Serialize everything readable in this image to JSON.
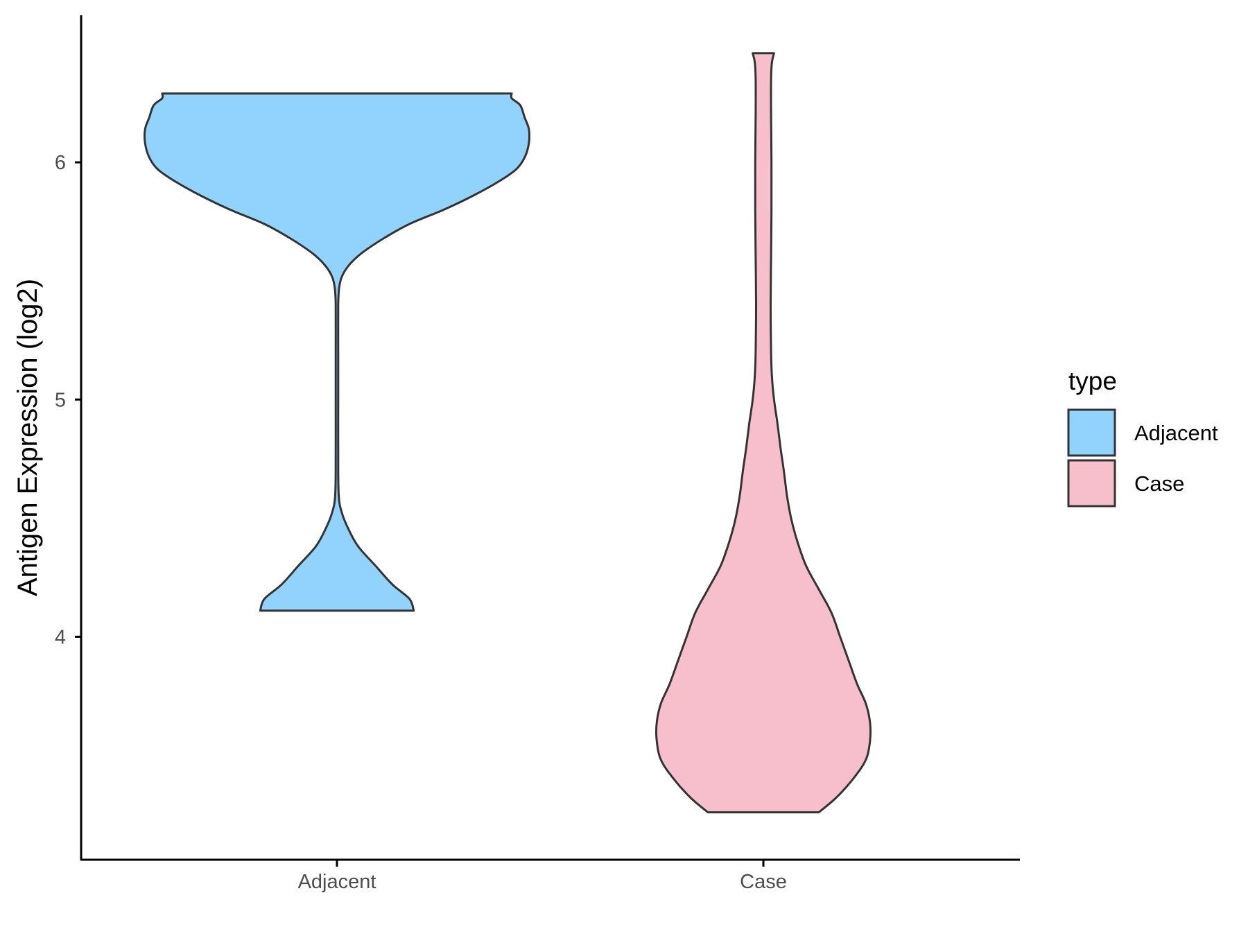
{
  "chart_data": {
    "type": "violin",
    "xlabel": "",
    "ylabel": "Antigen Expression (log2)",
    "categories": [
      "Adjacent",
      "Case"
    ],
    "ylim": [
      3.06,
      6.62
    ],
    "yticks": [
      4,
      5,
      6
    ],
    "grid": false,
    "legend": {
      "title": "type",
      "position": "right",
      "items": [
        {
          "label": "Adjacent",
          "color": "#92D3FE"
        },
        {
          "label": "Case",
          "color": "#F7BFCB"
        }
      ]
    },
    "outline_color": "#333333",
    "violins": [
      {
        "name": "Adjacent",
        "color": "#92D3FE",
        "range": [
          4.11,
          6.29
        ],
        "max_half_width": 0.45,
        "profile": [
          [
            4.11,
            0.18
          ],
          [
            4.16,
            0.17
          ],
          [
            4.22,
            0.13
          ],
          [
            4.3,
            0.09
          ],
          [
            4.38,
            0.05
          ],
          [
            4.45,
            0.028
          ],
          [
            4.52,
            0.012
          ],
          [
            4.6,
            0.004
          ],
          [
            4.8,
            0.003
          ],
          [
            5.0,
            0.003
          ],
          [
            5.2,
            0.003
          ],
          [
            5.4,
            0.003
          ],
          [
            5.47,
            0.005
          ],
          [
            5.52,
            0.012
          ],
          [
            5.57,
            0.03
          ],
          [
            5.62,
            0.06
          ],
          [
            5.68,
            0.11
          ],
          [
            5.74,
            0.17
          ],
          [
            5.8,
            0.25
          ],
          [
            5.86,
            0.32
          ],
          [
            5.92,
            0.38
          ],
          [
            5.97,
            0.42
          ],
          [
            6.02,
            0.44
          ],
          [
            6.08,
            0.45
          ],
          [
            6.14,
            0.45
          ],
          [
            6.19,
            0.44
          ],
          [
            6.24,
            0.43
          ],
          [
            6.27,
            0.41
          ],
          [
            6.29,
            0.41
          ]
        ]
      },
      {
        "name": "Case",
        "color": "#F7BFCB",
        "range": [
          3.26,
          6.46
        ],
        "max_half_width": 0.25,
        "profile": [
          [
            3.26,
            0.13
          ],
          [
            3.32,
            0.17
          ],
          [
            3.4,
            0.21
          ],
          [
            3.48,
            0.24
          ],
          [
            3.56,
            0.25
          ],
          [
            3.64,
            0.25
          ],
          [
            3.72,
            0.24
          ],
          [
            3.8,
            0.22
          ],
          [
            3.9,
            0.2
          ],
          [
            4.0,
            0.18
          ],
          [
            4.1,
            0.16
          ],
          [
            4.2,
            0.13
          ],
          [
            4.3,
            0.1
          ],
          [
            4.4,
            0.08
          ],
          [
            4.5,
            0.065
          ],
          [
            4.6,
            0.055
          ],
          [
            4.7,
            0.048
          ],
          [
            4.8,
            0.04
          ],
          [
            4.9,
            0.033
          ],
          [
            5.0,
            0.025
          ],
          [
            5.1,
            0.02
          ],
          [
            5.2,
            0.018
          ],
          [
            5.4,
            0.017
          ],
          [
            5.6,
            0.018
          ],
          [
            5.8,
            0.019
          ],
          [
            6.0,
            0.019
          ],
          [
            6.2,
            0.018
          ],
          [
            6.35,
            0.018
          ],
          [
            6.42,
            0.02
          ],
          [
            6.46,
            0.025
          ]
        ]
      }
    ]
  }
}
